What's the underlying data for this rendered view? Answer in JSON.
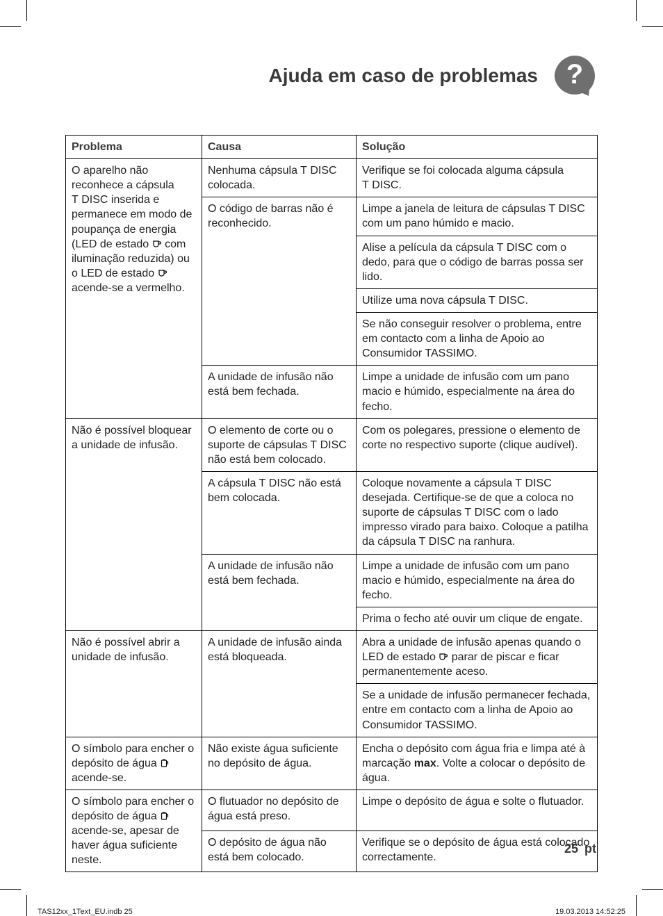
{
  "heading": "Ajuda em caso de problemas",
  "headers": {
    "col1": "Problema",
    "col2": "Causa",
    "col3": "Solução"
  },
  "rows": [
    {
      "problem": "O aparelho não reconhece a cápsula T DISC inserida e permanece em modo de poupança de energia (LED de estado {cup} com iluminação reduzida) ou o LED de estado {cup} acende-se a vermelho.",
      "causes": [
        {
          "cause": "Nenhuma cápsula T DISC colocada.",
          "solutions": [
            "Verifique se foi colocada alguma cápsula T DISC."
          ]
        },
        {
          "cause": "O código de barras não é reconhecido.",
          "solutions": [
            "Limpe a janela de leitura de cápsulas T DISC com um pano húmido e macio.",
            "Alise a película da cápsula T DISC com o dedo, para que o código de barras possa ser lido.",
            "Utilize uma nova cápsula T DISC.",
            "Se não conseguir resolver o problema, entre em contacto com a linha de Apoio ao Consumidor TASSIMO."
          ]
        },
        {
          "cause": "A unidade de infusão não está bem fechada.",
          "solutions": [
            "Limpe a unidade de infusão com um pano macio e húmido, especialmente na área do fecho."
          ]
        }
      ]
    },
    {
      "problem": "Não é possível bloquear a unidade de infusão.",
      "causes": [
        {
          "cause": "O elemento de corte ou o suporte de cápsulas T DISC não está bem colocado.",
          "solutions": [
            "Com os polegares, pressione o elemento de corte no respectivo suporte (clique audível)."
          ]
        },
        {
          "cause": "A cápsula T DISC não está bem colocada.",
          "solutions": [
            "Coloque novamente a cápsula T DISC desejada. Certifique-se de que a coloca no suporte de cápsulas T DISC com o lado impresso virado para baixo. Coloque a patilha da cápsula T DISC na ranhura."
          ]
        },
        {
          "cause": "A unidade de infusão não está bem fechada.",
          "solutions": [
            "Limpe a unidade de infusão com um pano macio e húmido, especialmente na área do fecho.",
            "Prima o fecho até ouvir um clique de engate."
          ]
        }
      ]
    },
    {
      "problem": "Não é possível abrir a unidade de infusão.",
      "causes": [
        {
          "cause": "A unidade de infusão ainda está bloqueada.",
          "solutions": [
            "Abra a unidade de infusão apenas quando o LED de estado {cup} parar de piscar e ficar permanentemente aceso.",
            "Se a unidade de infusão permanecer fechada, entre em contacto com a linha de Apoio ao Consumidor TASSIMO."
          ]
        }
      ]
    },
    {
      "problem": "O símbolo para encher o depósito de água {tank} acende-se.",
      "causes": [
        {
          "cause": "Não existe água suficiente no depósito de água.",
          "solutions": [
            "Encha o depósito com água fria e limpa até à marcação <b>max</b>. Volte a colocar o depósito de água."
          ]
        }
      ]
    },
    {
      "problem": "O símbolo para encher o depósito de água {tank} acende-se, apesar de haver água suficiente neste.",
      "causes": [
        {
          "cause": "O flutuador no depósito de água está preso.",
          "solutions": [
            "Limpe o depósito de água e solte o flutuador."
          ]
        },
        {
          "cause": "O depósito de água não está bem colocado.",
          "solutions": [
            "Verifique se o depósito de água está colocado correctamente."
          ]
        }
      ]
    }
  ],
  "page_number": "25",
  "lang_code": "pt",
  "print_left": "TAS12xx_1Text_EU.indb   25",
  "print_right": "19.03.2013   14:52:25",
  "colors": {
    "heading": "#3a3a3a",
    "badge": "#6f6f6f",
    "border": "#000000"
  }
}
